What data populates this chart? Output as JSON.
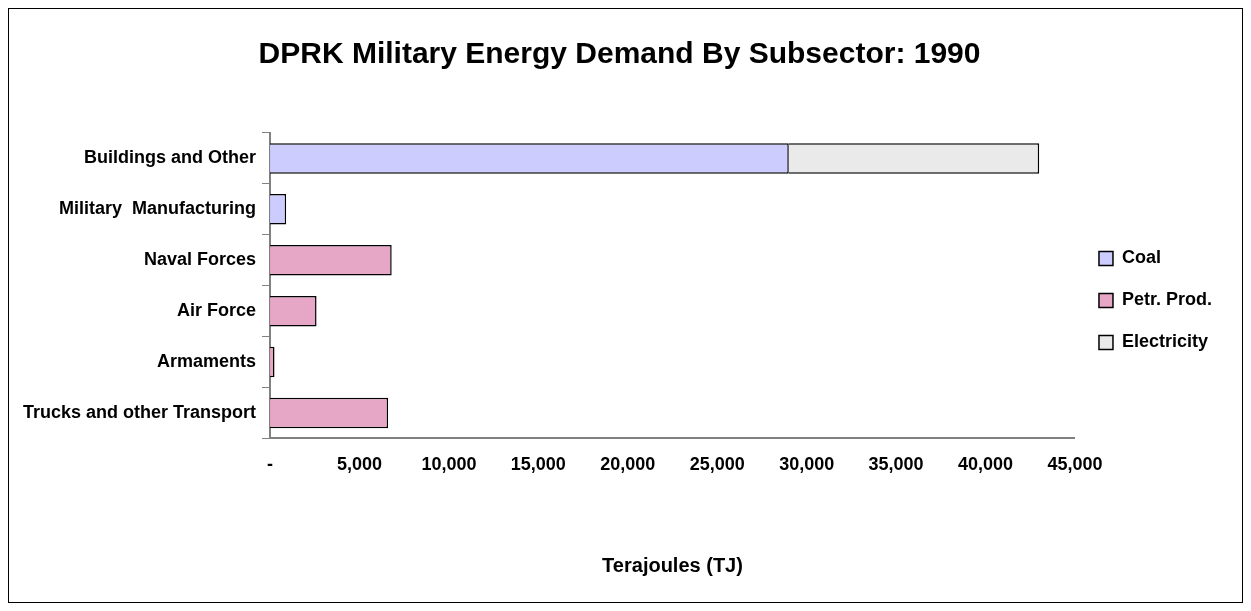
{
  "chart_data": {
    "type": "bar",
    "title": "DPRK Military Energy Demand By Subsector: 1990",
    "xlabel": "Terajoules (TJ)",
    "orientation": "horizontal",
    "stacked": true,
    "categories": [
      "Buildings and Other",
      "Military  Manufacturing",
      "Naval Forces",
      "Air Force",
      "Armaments",
      "Trucks and other Transport"
    ],
    "series": [
      {
        "name": "Coal",
        "color": "#ccccff",
        "values": [
          29000,
          900,
          null,
          null,
          null,
          null
        ]
      },
      {
        "name": "Petr. Prod.",
        "color": "#e6a6c6",
        "values": [
          null,
          null,
          6800,
          2600,
          250,
          6600
        ]
      },
      {
        "name": "Electricity",
        "color": "#eaeaea",
        "values": [
          14000,
          null,
          null,
          null,
          null,
          null
        ]
      }
    ],
    "xlim": [
      0,
      45000
    ],
    "xticks": [
      {
        "value": 0,
        "label": "-"
      },
      {
        "value": 5000,
        "label": "5,000"
      },
      {
        "value": 10000,
        "label": "10,000"
      },
      {
        "value": 15000,
        "label": "15,000"
      },
      {
        "value": 20000,
        "label": "20,000"
      },
      {
        "value": 25000,
        "label": "25,000"
      },
      {
        "value": 30000,
        "label": "30,000"
      },
      {
        "value": 35000,
        "label": "35,000"
      },
      {
        "value": 40000,
        "label": "40,000"
      },
      {
        "value": 45000,
        "label": "45,000"
      }
    ],
    "grid": false,
    "legend": "right"
  }
}
